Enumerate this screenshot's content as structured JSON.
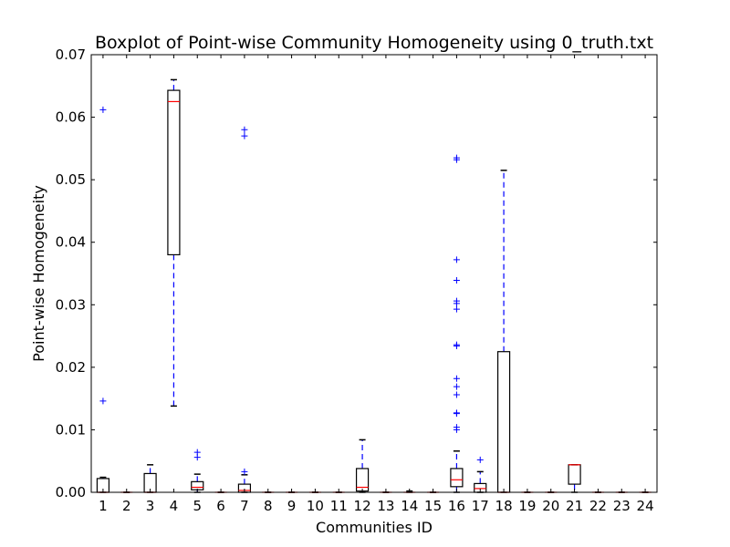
{
  "chart_data": {
    "type": "boxplot",
    "title": "Boxplot of Point-wise Community Homogeneity using 0_truth.txt",
    "xlabel": "Communities ID",
    "ylabel": "Point-wise Homogeneity",
    "ylim": [
      0,
      0.07
    ],
    "yticks": [
      "0.00",
      "0.01",
      "0.02",
      "0.03",
      "0.04",
      "0.05",
      "0.06",
      "0.07"
    ],
    "categories": [
      "1",
      "2",
      "3",
      "4",
      "5",
      "6",
      "7",
      "8",
      "9",
      "10",
      "11",
      "12",
      "13",
      "14",
      "15",
      "16",
      "17",
      "18",
      "19",
      "20",
      "21",
      "22",
      "23",
      "24"
    ],
    "grid": false,
    "colors": {
      "box": "#000000",
      "median": "#ff0000",
      "whisker": "#0000ff",
      "cap": "#000000",
      "outlier": "#0000ff"
    },
    "boxes": [
      {
        "id": "1",
        "q1": 0.0,
        "median": 0.0,
        "q3": 0.0022,
        "whisker_low": 0.0,
        "whisker_high": 0.0024,
        "outliers": [
          0.0146,
          0.0612
        ]
      },
      {
        "id": "2",
        "q1": 0.0,
        "median": 0.0,
        "q3": 0.0,
        "whisker_low": 0.0,
        "whisker_high": 0.0,
        "outliers": []
      },
      {
        "id": "3",
        "q1": 0.0,
        "median": 0.0,
        "q3": 0.003,
        "whisker_low": 0.0,
        "whisker_high": 0.0044,
        "outliers": []
      },
      {
        "id": "4",
        "q1": 0.038,
        "median": 0.0625,
        "q3": 0.0643,
        "whisker_low": 0.0138,
        "whisker_high": 0.066,
        "outliers": []
      },
      {
        "id": "5",
        "q1": 0.0004,
        "median": 0.0008,
        "q3": 0.0017,
        "whisker_low": 0.0,
        "whisker_high": 0.0029,
        "outliers": [
          0.0056,
          0.0064
        ]
      },
      {
        "id": "6",
        "q1": 0.0,
        "median": 0.0,
        "q3": 0.0,
        "whisker_low": 0.0,
        "whisker_high": 0.0,
        "outliers": []
      },
      {
        "id": "7",
        "q1": 0.0,
        "median": 0.0003,
        "q3": 0.0013,
        "whisker_low": 0.0,
        "whisker_high": 0.0028,
        "outliers": [
          0.0033,
          0.057,
          0.058
        ]
      },
      {
        "id": "8",
        "q1": 0.0,
        "median": 0.0,
        "q3": 0.0,
        "whisker_low": 0.0,
        "whisker_high": 0.0,
        "outliers": []
      },
      {
        "id": "9",
        "q1": 0.0,
        "median": 0.0,
        "q3": 0.0,
        "whisker_low": 0.0,
        "whisker_high": 0.0,
        "outliers": []
      },
      {
        "id": "10",
        "q1": 0.0,
        "median": 0.0,
        "q3": 0.0,
        "whisker_low": 0.0,
        "whisker_high": 0.0,
        "outliers": []
      },
      {
        "id": "11",
        "q1": 0.0,
        "median": 0.0,
        "q3": 0.0,
        "whisker_low": 0.0,
        "whisker_high": 0.0,
        "outliers": []
      },
      {
        "id": "12",
        "q1": 0.0002,
        "median": 0.0008,
        "q3": 0.0038,
        "whisker_low": 0.0,
        "whisker_high": 0.0084,
        "outliers": []
      },
      {
        "id": "13",
        "q1": 0.0,
        "median": 0.0,
        "q3": 0.0,
        "whisker_low": 0.0,
        "whisker_high": 0.0,
        "outliers": []
      },
      {
        "id": "14",
        "q1": 0.0,
        "median": 0.0,
        "q3": 0.0,
        "whisker_low": 0.0,
        "whisker_high": 0.0002,
        "outliers": []
      },
      {
        "id": "15",
        "q1": 0.0,
        "median": 0.0,
        "q3": 0.0,
        "whisker_low": 0.0,
        "whisker_high": 0.0,
        "outliers": []
      },
      {
        "id": "16",
        "q1": 0.0009,
        "median": 0.002,
        "q3": 0.0038,
        "whisker_low": 0.0,
        "whisker_high": 0.0066,
        "outliers": [
          0.01,
          0.0104,
          0.0126,
          0.0127,
          0.0156,
          0.0169,
          0.0182,
          0.0234,
          0.0236,
          0.0293,
          0.0302,
          0.0306,
          0.0339,
          0.0372,
          0.0532,
          0.0535
        ]
      },
      {
        "id": "17",
        "q1": 0.0,
        "median": 0.0006,
        "q3": 0.0014,
        "whisker_low": 0.0,
        "whisker_high": 0.0033,
        "outliers": [
          0.0052
        ]
      },
      {
        "id": "18",
        "q1": 0.0,
        "median": 0.0,
        "q3": 0.0225,
        "whisker_low": 0.0,
        "whisker_high": 0.0515,
        "outliers": []
      },
      {
        "id": "19",
        "q1": 0.0,
        "median": 0.0,
        "q3": 0.0,
        "whisker_low": 0.0,
        "whisker_high": 0.0,
        "outliers": []
      },
      {
        "id": "20",
        "q1": 0.0,
        "median": 0.0,
        "q3": 0.0,
        "whisker_low": 0.0,
        "whisker_high": 0.0,
        "outliers": []
      },
      {
        "id": "21",
        "q1": 0.0013,
        "median": 0.0044,
        "q3": 0.0044,
        "whisker_low": 0.0,
        "whisker_high": 0.0044,
        "outliers": []
      },
      {
        "id": "22",
        "q1": 0.0,
        "median": 0.0,
        "q3": 0.0,
        "whisker_low": 0.0,
        "whisker_high": 0.0,
        "outliers": []
      },
      {
        "id": "23",
        "q1": 0.0,
        "median": 0.0,
        "q3": 0.0,
        "whisker_low": 0.0,
        "whisker_high": 0.0,
        "outliers": []
      },
      {
        "id": "24",
        "q1": 0.0,
        "median": 0.0,
        "q3": 0.0,
        "whisker_low": 0.0,
        "whisker_high": 0.0,
        "outliers": []
      }
    ]
  }
}
